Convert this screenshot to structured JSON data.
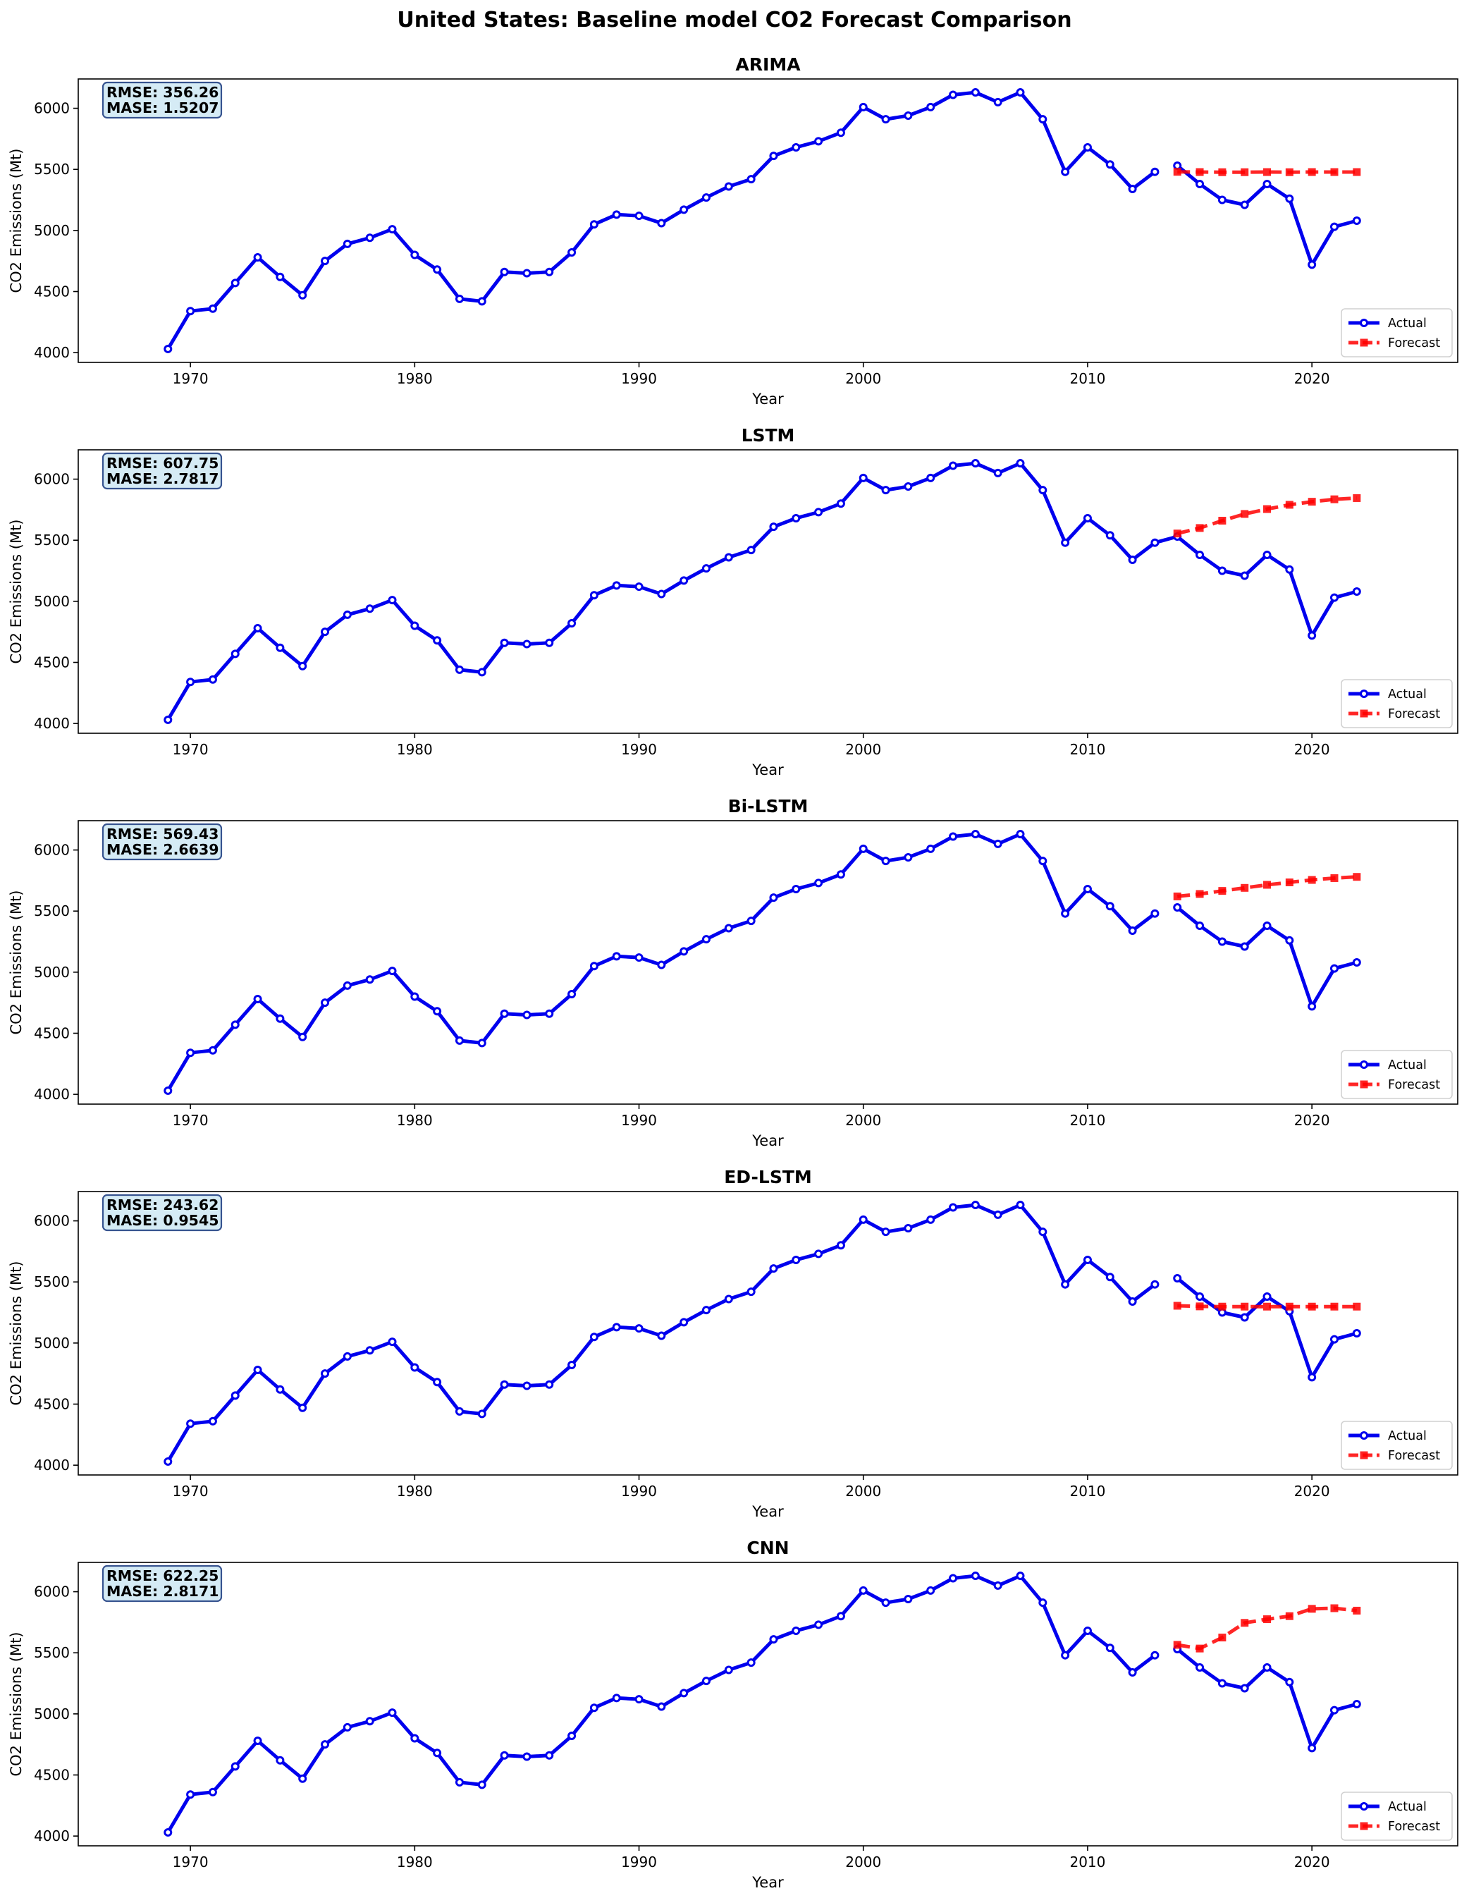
{
  "figure_title": "United States: Baseline model CO2 Forecast Comparison",
  "colors": {
    "actual": "#0000ee",
    "forecast": "#ff0000",
    "metrics_box_fill": "#d3eaf5",
    "metrics_box_edge": "#2c4a8a"
  },
  "chart_data": [
    {
      "type": "line",
      "title": "ARIMA",
      "xlabel": "Year",
      "ylabel": "CO2 Emissions (Mt)",
      "xlim": [
        1965,
        2026.5
      ],
      "ylim": [
        3920,
        6240
      ],
      "xticks": [
        1970,
        1980,
        1990,
        2000,
        2010,
        2020
      ],
      "yticks": [
        4000,
        4500,
        5000,
        5500,
        6000
      ],
      "grid": false,
      "legend": "lower right",
      "metrics": [
        "RMSE: 356.26",
        "MASE: 1.5207"
      ],
      "series": [
        {
          "name": "Actual",
          "style": "solid",
          "marker": "circle",
          "x": [
            1969,
            1970,
            1971,
            1972,
            1973,
            1974,
            1975,
            1976,
            1977,
            1978,
            1979,
            1980,
            1981,
            1982,
            1983,
            1984,
            1985,
            1986,
            1987,
            1988,
            1989,
            1990,
            1991,
            1992,
            1993,
            1994,
            1995,
            1996,
            1997,
            1998,
            1999,
            2000,
            2001,
            2002,
            2003,
            2004,
            2005,
            2006,
            2007,
            2008,
            2009,
            2010,
            2011,
            2012,
            2013,
            2014,
            2015,
            2016,
            2017,
            2018,
            2019,
            2020,
            2021,
            2022
          ],
          "y": [
            4030,
            4340,
            4360,
            4570,
            4780,
            4620,
            4470,
            4750,
            4890,
            4940,
            5010,
            4800,
            4680,
            4440,
            4420,
            4660,
            4650,
            4660,
            4820,
            5050,
            5130,
            5120,
            5060,
            5170,
            5270,
            5360,
            5420,
            5610,
            5680,
            5730,
            5800,
            6010,
            5910,
            5940,
            6010,
            6110,
            6130,
            6050,
            6130,
            5910,
            5480,
            5680,
            5540,
            5340,
            5480,
            5530,
            5380,
            5250,
            5210,
            5380,
            5260,
            4720,
            5030,
            5080
          ],
          "breaks": [
            2013
          ]
        },
        {
          "name": "Forecast",
          "style": "dashed",
          "marker": "square",
          "x": [
            2014,
            2015,
            2016,
            2017,
            2018,
            2019,
            2020,
            2021,
            2022
          ],
          "y": [
            5480,
            5478,
            5477,
            5477,
            5478,
            5477,
            5478,
            5478,
            5478
          ]
        }
      ]
    },
    {
      "type": "line",
      "title": "LSTM",
      "xlabel": "Year",
      "ylabel": "CO2 Emissions (Mt)",
      "xlim": [
        1965,
        2026.5
      ],
      "ylim": [
        3920,
        6240
      ],
      "xticks": [
        1970,
        1980,
        1990,
        2000,
        2010,
        2020
      ],
      "yticks": [
        4000,
        4500,
        5000,
        5500,
        6000
      ],
      "grid": false,
      "legend": "lower right",
      "metrics": [
        "RMSE: 607.75",
        "MASE: 2.7817"
      ],
      "series": [
        {
          "name": "Actual",
          "style": "solid",
          "marker": "circle",
          "x": [
            1969,
            1970,
            1971,
            1972,
            1973,
            1974,
            1975,
            1976,
            1977,
            1978,
            1979,
            1980,
            1981,
            1982,
            1983,
            1984,
            1985,
            1986,
            1987,
            1988,
            1989,
            1990,
            1991,
            1992,
            1993,
            1994,
            1995,
            1996,
            1997,
            1998,
            1999,
            2000,
            2001,
            2002,
            2003,
            2004,
            2005,
            2006,
            2007,
            2008,
            2009,
            2010,
            2011,
            2012,
            2013,
            2014,
            2015,
            2016,
            2017,
            2018,
            2019,
            2020,
            2021,
            2022
          ],
          "y": [
            4030,
            4340,
            4360,
            4570,
            4780,
            4620,
            4470,
            4750,
            4890,
            4940,
            5010,
            4800,
            4680,
            4440,
            4420,
            4660,
            4650,
            4660,
            4820,
            5050,
            5130,
            5120,
            5060,
            5170,
            5270,
            5360,
            5420,
            5610,
            5680,
            5730,
            5800,
            6010,
            5910,
            5940,
            6010,
            6110,
            6130,
            6050,
            6130,
            5910,
            5480,
            5680,
            5540,
            5340,
            5480,
            5530,
            5380,
            5250,
            5210,
            5380,
            5260,
            4720,
            5030,
            5080
          ],
          "breaks": []
        },
        {
          "name": "Forecast",
          "style": "dashed",
          "marker": "square",
          "x": [
            2014,
            2015,
            2016,
            2017,
            2018,
            2019,
            2020,
            2021,
            2022
          ],
          "y": [
            5555,
            5600,
            5660,
            5715,
            5755,
            5790,
            5815,
            5835,
            5845
          ]
        }
      ]
    },
    {
      "type": "line",
      "title": "Bi-LSTM",
      "xlabel": "Year",
      "ylabel": "CO2 Emissions (Mt)",
      "xlim": [
        1965,
        2026.5
      ],
      "ylim": [
        3920,
        6240
      ],
      "xticks": [
        1970,
        1980,
        1990,
        2000,
        2010,
        2020
      ],
      "yticks": [
        4000,
        4500,
        5000,
        5500,
        6000
      ],
      "grid": false,
      "legend": "lower right",
      "metrics": [
        "RMSE: 569.43",
        "MASE: 2.6639"
      ],
      "series": [
        {
          "name": "Actual",
          "style": "solid",
          "marker": "circle",
          "x": [
            1969,
            1970,
            1971,
            1972,
            1973,
            1974,
            1975,
            1976,
            1977,
            1978,
            1979,
            1980,
            1981,
            1982,
            1983,
            1984,
            1985,
            1986,
            1987,
            1988,
            1989,
            1990,
            1991,
            1992,
            1993,
            1994,
            1995,
            1996,
            1997,
            1998,
            1999,
            2000,
            2001,
            2002,
            2003,
            2004,
            2005,
            2006,
            2007,
            2008,
            2009,
            2010,
            2011,
            2012,
            2013,
            2014,
            2015,
            2016,
            2017,
            2018,
            2019,
            2020,
            2021,
            2022
          ],
          "y": [
            4030,
            4340,
            4360,
            4570,
            4780,
            4620,
            4470,
            4750,
            4890,
            4940,
            5010,
            4800,
            4680,
            4440,
            4420,
            4660,
            4650,
            4660,
            4820,
            5050,
            5130,
            5120,
            5060,
            5170,
            5270,
            5360,
            5420,
            5610,
            5680,
            5730,
            5800,
            6010,
            5910,
            5940,
            6010,
            6110,
            6130,
            6050,
            6130,
            5910,
            5480,
            5680,
            5540,
            5340,
            5480,
            5530,
            5380,
            5250,
            5210,
            5380,
            5260,
            4720,
            5030,
            5080
          ],
          "breaks": [
            2013
          ]
        },
        {
          "name": "Forecast",
          "style": "dashed",
          "marker": "square",
          "x": [
            2014,
            2015,
            2016,
            2017,
            2018,
            2019,
            2020,
            2021,
            2022
          ],
          "y": [
            5620,
            5640,
            5665,
            5690,
            5715,
            5735,
            5755,
            5770,
            5780
          ]
        }
      ]
    },
    {
      "type": "line",
      "title": "ED-LSTM",
      "xlabel": "Year",
      "ylabel": "CO2 Emissions (Mt)",
      "xlim": [
        1965,
        2026.5
      ],
      "ylim": [
        3920,
        6240
      ],
      "xticks": [
        1970,
        1980,
        1990,
        2000,
        2010,
        2020
      ],
      "yticks": [
        4000,
        4500,
        5000,
        5500,
        6000
      ],
      "grid": false,
      "legend": "lower right",
      "metrics": [
        "RMSE: 243.62",
        "MASE: 0.9545"
      ],
      "series": [
        {
          "name": "Actual",
          "style": "solid",
          "marker": "circle",
          "x": [
            1969,
            1970,
            1971,
            1972,
            1973,
            1974,
            1975,
            1976,
            1977,
            1978,
            1979,
            1980,
            1981,
            1982,
            1983,
            1984,
            1985,
            1986,
            1987,
            1988,
            1989,
            1990,
            1991,
            1992,
            1993,
            1994,
            1995,
            1996,
            1997,
            1998,
            1999,
            2000,
            2001,
            2002,
            2003,
            2004,
            2005,
            2006,
            2007,
            2008,
            2009,
            2010,
            2011,
            2012,
            2013,
            2014,
            2015,
            2016,
            2017,
            2018,
            2019,
            2020,
            2021,
            2022
          ],
          "y": [
            4030,
            4340,
            4360,
            4570,
            4780,
            4620,
            4470,
            4750,
            4890,
            4940,
            5010,
            4800,
            4680,
            4440,
            4420,
            4660,
            4650,
            4660,
            4820,
            5050,
            5130,
            5120,
            5060,
            5170,
            5270,
            5360,
            5420,
            5610,
            5680,
            5730,
            5800,
            6010,
            5910,
            5940,
            6010,
            6110,
            6130,
            6050,
            6130,
            5910,
            5480,
            5680,
            5540,
            5340,
            5480,
            5530,
            5380,
            5250,
            5210,
            5380,
            5260,
            4720,
            5030,
            5080
          ],
          "breaks": [
            2013
          ]
        },
        {
          "name": "Forecast",
          "style": "dashed",
          "marker": "square",
          "x": [
            2014,
            2015,
            2016,
            2017,
            2018,
            2019,
            2020,
            2021,
            2022
          ],
          "y": [
            5305,
            5300,
            5298,
            5298,
            5298,
            5298,
            5298,
            5298,
            5298
          ]
        }
      ]
    },
    {
      "type": "line",
      "title": "CNN",
      "xlabel": "Year",
      "ylabel": "CO2 Emissions (Mt)",
      "xlim": [
        1965,
        2026.5
      ],
      "ylim": [
        3920,
        6240
      ],
      "xticks": [
        1970,
        1980,
        1990,
        2000,
        2010,
        2020
      ],
      "yticks": [
        4000,
        4500,
        5000,
        5500,
        6000
      ],
      "grid": false,
      "legend": "lower right",
      "metrics": [
        "RMSE: 622.25",
        "MASE: 2.8171"
      ],
      "series": [
        {
          "name": "Actual",
          "style": "solid",
          "marker": "circle",
          "x": [
            1969,
            1970,
            1971,
            1972,
            1973,
            1974,
            1975,
            1976,
            1977,
            1978,
            1979,
            1980,
            1981,
            1982,
            1983,
            1984,
            1985,
            1986,
            1987,
            1988,
            1989,
            1990,
            1991,
            1992,
            1993,
            1994,
            1995,
            1996,
            1997,
            1998,
            1999,
            2000,
            2001,
            2002,
            2003,
            2004,
            2005,
            2006,
            2007,
            2008,
            2009,
            2010,
            2011,
            2012,
            2013,
            2014,
            2015,
            2016,
            2017,
            2018,
            2019,
            2020,
            2021,
            2022
          ],
          "y": [
            4030,
            4340,
            4360,
            4570,
            4780,
            4620,
            4470,
            4750,
            4890,
            4940,
            5010,
            4800,
            4680,
            4440,
            4420,
            4660,
            4650,
            4660,
            4820,
            5050,
            5130,
            5120,
            5060,
            5170,
            5270,
            5360,
            5420,
            5610,
            5680,
            5730,
            5800,
            6010,
            5910,
            5940,
            6010,
            6110,
            6130,
            6050,
            6130,
            5910,
            5480,
            5680,
            5540,
            5340,
            5480,
            5530,
            5380,
            5250,
            5210,
            5380,
            5260,
            4720,
            5030,
            5080
          ],
          "breaks": [
            2013
          ]
        },
        {
          "name": "Forecast",
          "style": "dashed",
          "marker": "square",
          "x": [
            2014,
            2015,
            2016,
            2017,
            2018,
            2019,
            2020,
            2021,
            2022
          ],
          "y": [
            5565,
            5535,
            5625,
            5745,
            5775,
            5800,
            5860,
            5865,
            5845
          ]
        }
      ]
    }
  ]
}
